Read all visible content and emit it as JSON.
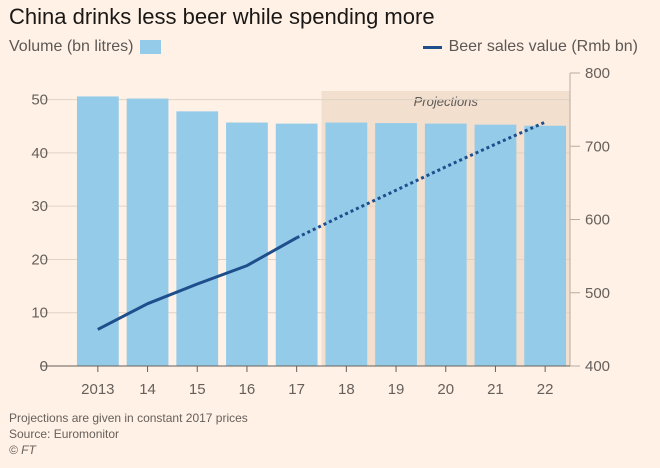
{
  "title": "China drinks less beer while spending more",
  "legend": {
    "volume_label": "Volume (bn litres)",
    "sales_label": "Beer sales value (Rmb bn)"
  },
  "projection_label": "Projections",
  "notes": {
    "line1": "Projections are given in constant 2017 prices",
    "line2": "Source: Euromonitor",
    "credit": "© FT"
  },
  "colors": {
    "bar": "#93cbe9",
    "line": "#1f4e8c",
    "projection_band": "#f2dfce",
    "background": "#fff1e5"
  },
  "chart_data": {
    "type": "bar+line",
    "title": "China drinks less beer while spending more",
    "categories": [
      "2013",
      "14",
      "15",
      "16",
      "17",
      "18",
      "19",
      "20",
      "21",
      "22"
    ],
    "series": [
      {
        "name": "Volume (bn litres)",
        "type": "bar",
        "axis": "left",
        "values": [
          50.6,
          50.2,
          47.8,
          45.7,
          45.5,
          45.7,
          45.6,
          45.5,
          45.3,
          45.1
        ]
      },
      {
        "name": "Beer sales value (Rmb bn)",
        "type": "line",
        "axis": "right",
        "values": [
          450,
          485,
          512,
          537,
          575,
          608,
          640,
          672,
          703,
          733
        ],
        "projected_from_index": 4
      }
    ],
    "left_axis": {
      "ylim": [
        0,
        55
      ],
      "ticks": [
        0,
        10,
        20,
        30,
        40,
        50
      ]
    },
    "right_axis": {
      "ylim": [
        400,
        800
      ],
      "ticks": [
        400,
        500,
        600,
        700,
        800
      ]
    },
    "projection_start_index": 5,
    "xlabel": "",
    "ylabel": ""
  }
}
